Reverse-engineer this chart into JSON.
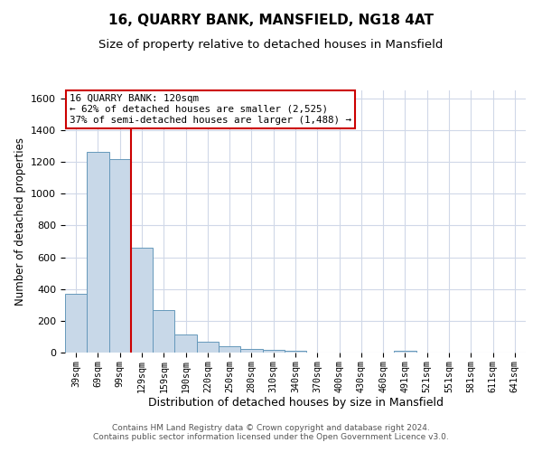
{
  "title": "16, QUARRY BANK, MANSFIELD, NG18 4AT",
  "subtitle": "Size of property relative to detached houses in Mansfield",
  "xlabel": "Distribution of detached houses by size in Mansfield",
  "ylabel": "Number of detached properties",
  "bar_labels": [
    "39sqm",
    "69sqm",
    "99sqm",
    "129sqm",
    "159sqm",
    "190sqm",
    "220sqm",
    "250sqm",
    "280sqm",
    "310sqm",
    "340sqm",
    "370sqm",
    "400sqm",
    "430sqm",
    "460sqm",
    "491sqm",
    "521sqm",
    "551sqm",
    "581sqm",
    "611sqm",
    "641sqm"
  ],
  "bar_heights": [
    370,
    1265,
    1215,
    660,
    265,
    115,
    70,
    37,
    20,
    15,
    10,
    0,
    0,
    0,
    0,
    10,
    0,
    0,
    0,
    0,
    0
  ],
  "bar_color": "#c8d8e8",
  "bar_edgecolor": "#6699bb",
  "vline_x": 2.5,
  "vline_color": "#cc0000",
  "ylim": [
    0,
    1650
  ],
  "yticks": [
    0,
    200,
    400,
    600,
    800,
    1000,
    1200,
    1400,
    1600
  ],
  "annotation_title": "16 QUARRY BANK: 120sqm",
  "annotation_line1": "← 62% of detached houses are smaller (2,525)",
  "annotation_line2": "37% of semi-detached houses are larger (1,488) →",
  "annotation_box_color": "#ffffff",
  "annotation_box_edgecolor": "#cc0000",
  "footer_line1": "Contains HM Land Registry data © Crown copyright and database right 2024.",
  "footer_line2": "Contains public sector information licensed under the Open Government Licence v3.0.",
  "background_color": "#ffffff",
  "grid_color": "#d0d8e8",
  "title_fontsize": 11,
  "subtitle_fontsize": 9.5
}
